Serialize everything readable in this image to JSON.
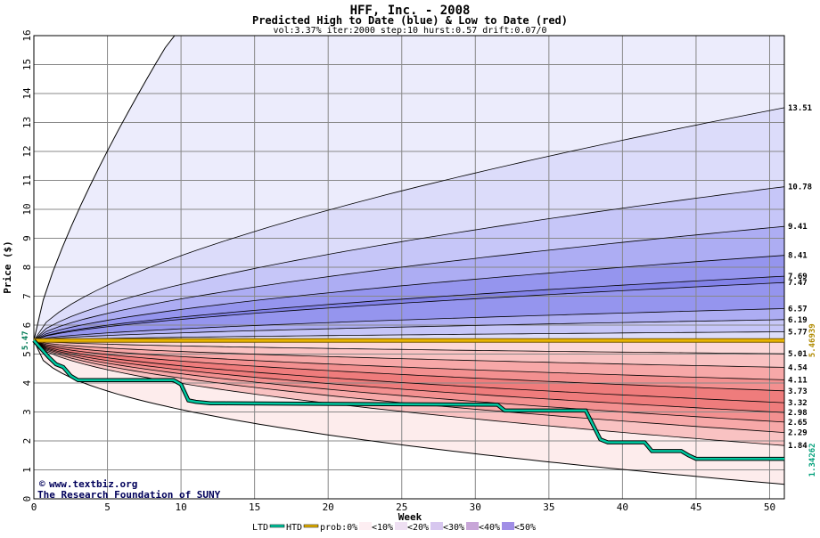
{
  "chart_data": {
    "type": "area",
    "title": "HFF, Inc. - 2008",
    "subtitle": "Predicted High to Date (blue) &  Low to Date (red)",
    "params": "vol:3.37% iter:2000 step:10 hurst:0.57 drift:0.07/0",
    "xlabel": "Week",
    "ylabel": "Price ($)",
    "xlim": [
      0,
      51
    ],
    "ylim": [
      0,
      16
    ],
    "x_ticks": [
      0,
      5,
      10,
      15,
      20,
      25,
      30,
      35,
      40,
      45,
      50
    ],
    "y_ticks": [
      0,
      1,
      2,
      3,
      4,
      5,
      6,
      7,
      8,
      9,
      10,
      11,
      12,
      13,
      14,
      15,
      16
    ],
    "start_price_label": "5.47",
    "start_price": 5.47,
    "htd_value_label": "5.46939",
    "htd_value": 5.46939,
    "ltd_value_label": "1.34262",
    "ltd_value": 1.34262,
    "high_quantile_end_values": [
      13.51,
      10.78,
      9.41,
      8.41,
      7.69,
      7.47,
      6.57,
      6.19,
      5.77
    ],
    "high_quantile_end_labels": [
      "13.51",
      "10.78",
      "9.41",
      "8.41",
      "7.69",
      "7.47",
      "6.57",
      "6.19",
      "5.77"
    ],
    "low_quantile_end_values": [
      5.01,
      4.54,
      4.11,
      3.73,
      3.32,
      2.98,
      2.65,
      2.29,
      1.84
    ],
    "low_quantile_end_labels": [
      "5.01",
      "4.54",
      "4.11",
      "3.73",
      "3.32",
      "2.98",
      "2.65",
      "2.29",
      "1.84"
    ],
    "outer_high_bound_end": 16.0,
    "outer_low_bound_end": 0.5,
    "ltd_series": {
      "x": [
        0,
        1,
        1.5,
        2,
        2.5,
        3,
        9.5,
        10,
        10.5,
        11,
        12,
        13,
        31.5,
        32,
        37.5,
        38,
        38.5,
        39,
        41.5,
        42,
        44,
        44.5,
        45,
        51
      ],
      "y": [
        5.47,
        4.9,
        4.65,
        4.55,
        4.25,
        4.1,
        4.1,
        3.95,
        3.4,
        3.35,
        3.3,
        3.3,
        3.25,
        3.05,
        3.05,
        2.55,
        2.05,
        1.95,
        1.95,
        1.65,
        1.65,
        1.5,
        1.38,
        1.38
      ]
    },
    "htd_series": {
      "x": [
        0,
        51
      ],
      "y": [
        5.47,
        5.47
      ]
    },
    "colors": {
      "high_bands": [
        "#ececfc",
        "#dcdcfa",
        "#c6c6f8",
        "#adadf3",
        "#9595ee",
        "#8282e8"
      ],
      "low_bands": [
        "#fdecec",
        "#fcd8d8",
        "#f9c2c2",
        "#f7a8a8",
        "#f39090",
        "#ef7c7c"
      ],
      "ltd_line": "#00c8a0",
      "htd_line": "#e8b400",
      "grid": "#888888",
      "credit": "#00005a"
    },
    "legend": {
      "entries": [
        "LTD",
        "HTD",
        "prob:0%",
        "<10%",
        "<20%",
        "<30%",
        "<40%",
        "<50%"
      ],
      "swatches": [
        "#00c8a0",
        "#e8b400",
        "#ffffff",
        "#fdeef2",
        "#eedff2",
        "#d7c7ef",
        "#c8a6d8",
        "#a08ee6"
      ]
    },
    "credits": [
      "www.textbiz.org",
      "The Research Foundation of SUNY"
    ]
  }
}
